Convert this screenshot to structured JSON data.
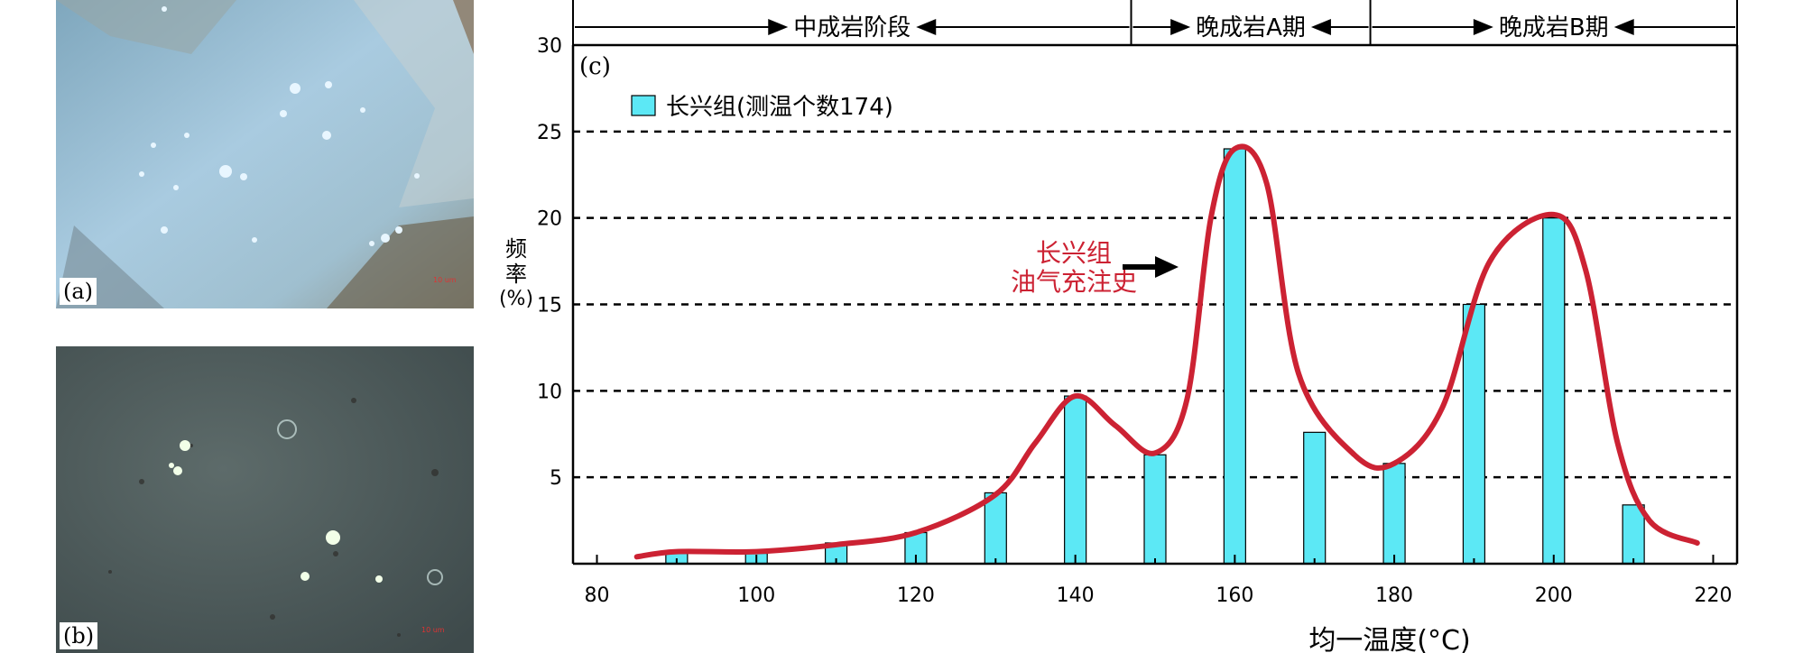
{
  "photos": {
    "a": {
      "label": "(a)",
      "scale": "10 um"
    },
    "b": {
      "label": "(b)",
      "scale": "10 um"
    }
  },
  "chart_data": {
    "type": "bar",
    "panel_label": "(c)",
    "categories": [
      "90",
      "100",
      "110",
      "120",
      "130",
      "140",
      "150",
      "160",
      "170",
      "180",
      "190",
      "200",
      "210"
    ],
    "series": [
      {
        "name": "长兴组(测温个数174)",
        "x": [
          90,
          100,
          110,
          120,
          130,
          140,
          150,
          160,
          170,
          180,
          190,
          200,
          210
        ],
        "values": [
          0.6,
          0.6,
          1.2,
          1.8,
          4.1,
          9.7,
          6.3,
          24.0,
          7.6,
          5.8,
          15.0,
          20.0,
          3.4
        ],
        "color": "#5ce8f5"
      }
    ],
    "curve": {
      "label_line1": "长兴组",
      "label_line2": "油气充注史",
      "color": "#cc2233",
      "points": [
        [
          85,
          0.4
        ],
        [
          90,
          0.7
        ],
        [
          100,
          0.7
        ],
        [
          110,
          1.1
        ],
        [
          120,
          1.8
        ],
        [
          130,
          4.0
        ],
        [
          135,
          7.0
        ],
        [
          140,
          9.7
        ],
        [
          145,
          8.0
        ],
        [
          150,
          6.4
        ],
        [
          154,
          9.5
        ],
        [
          157,
          20.0
        ],
        [
          160,
          24.0
        ],
        [
          164,
          22.0
        ],
        [
          168,
          11.0
        ],
        [
          175,
          6.3
        ],
        [
          180,
          5.8
        ],
        [
          186,
          9.0
        ],
        [
          192,
          17.5
        ],
        [
          200,
          20.2
        ],
        [
          204,
          17.0
        ],
        [
          208,
          7.0
        ],
        [
          212,
          2.5
        ],
        [
          218,
          1.2
        ]
      ]
    },
    "xlabel": "均一温度(°C)",
    "ylabel_lines": [
      "频",
      "率",
      "(%)"
    ],
    "xlim": [
      77,
      223
    ],
    "ylim": [
      0,
      30
    ],
    "xticks": [
      80,
      100,
      120,
      140,
      160,
      180,
      200,
      220
    ],
    "yticks": [
      5,
      10,
      15,
      20,
      25,
      30
    ],
    "grid": "dashed horizontal at 5, 10, 15, 20, 25",
    "legend": "top-left",
    "stages": [
      {
        "label": "中成岩阶段",
        "from": 77,
        "to": 147
      },
      {
        "label": "晚成岩A期",
        "from": 147,
        "to": 177
      },
      {
        "label": "晚成岩B期",
        "from": 177,
        "to": 223
      }
    ]
  }
}
